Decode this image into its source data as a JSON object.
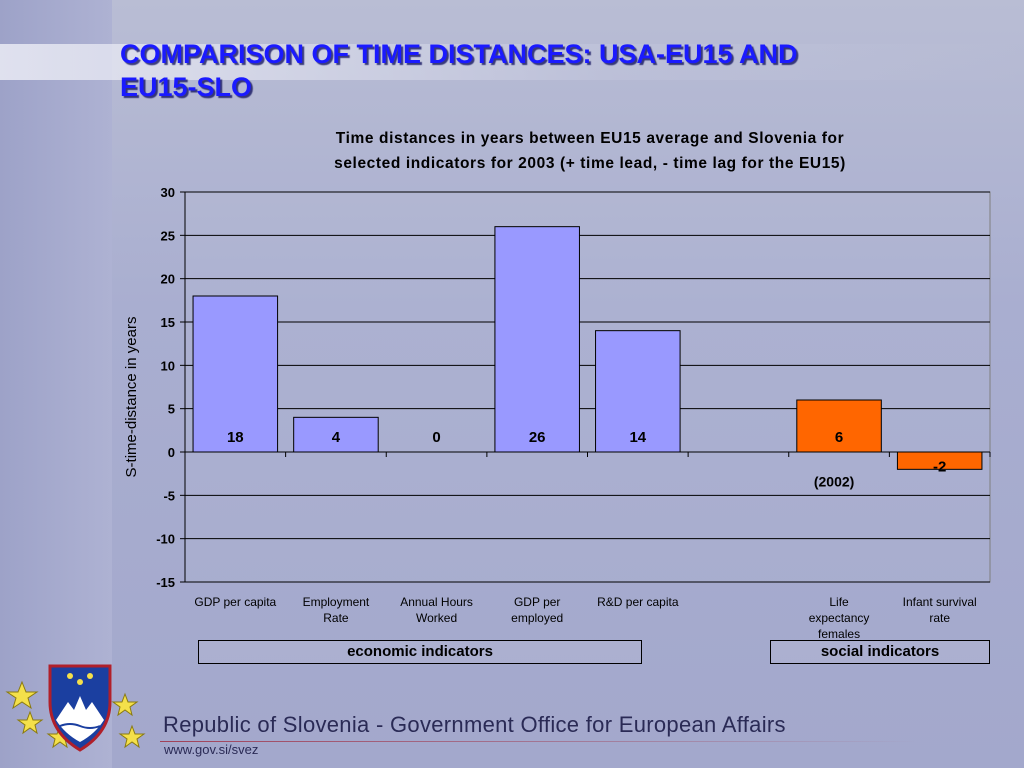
{
  "slide": {
    "title_line1": "COMPARISON OF TIME DISTANCES: USA-EU15 AND",
    "title_line2": "EU15-SLO"
  },
  "chart_data": {
    "type": "bar",
    "title_line1": "Time distances in years between EU15 average and Slovenia for",
    "title_line2": "selected indicators for 2003 (+ time lead, - time lag for the EU15)",
    "ylabel": "S-time-distance in years",
    "xlabel": "",
    "ylim": [
      -15,
      30
    ],
    "yticks": [
      30,
      25,
      20,
      15,
      10,
      5,
      0,
      -5,
      -10,
      -15
    ],
    "grid": true,
    "categories": [
      [
        "GDP per capita"
      ],
      [
        "Employment",
        "Rate"
      ],
      [
        "Annual Hours",
        "Worked"
      ],
      [
        "GDP per",
        "employed"
      ],
      [
        "R&D per capita"
      ],
      [],
      [
        "Life",
        "expectancy",
        "females"
      ],
      [
        "Infant survival",
        "rate"
      ]
    ],
    "values": [
      18,
      4,
      0,
      26,
      14,
      null,
      6,
      -2
    ],
    "value_labels": [
      "18",
      "4",
      "0",
      "26",
      "14",
      "",
      "6",
      "-2"
    ],
    "bar_colors": [
      "#9999ff",
      "#9999ff",
      "#9999ff",
      "#9999ff",
      "#9999ff",
      "",
      "#ff6600",
      "#ff6600"
    ],
    "annotation": "(2002)",
    "groups": [
      {
        "label": "economic indicators"
      },
      {
        "label": "social indicators"
      }
    ]
  },
  "footer": {
    "organization": "Republic of Slovenia - Government Office for European Affairs",
    "url": "www.gov.si/svez"
  },
  "colors": {
    "title": "#1a1aff",
    "economic_bar": "#9999ff",
    "social_bar": "#ff6600"
  }
}
